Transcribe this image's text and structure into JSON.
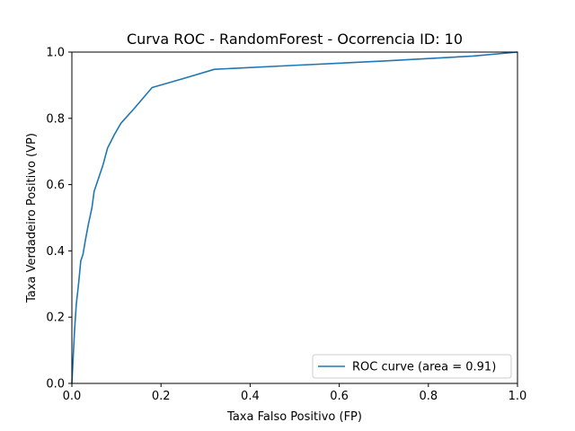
{
  "chart_data": {
    "type": "line",
    "title": "Curva ROC - RandomForest - Ocorrencia ID: 10",
    "xlabel": "Taxa Falso Positivo (FP)",
    "ylabel": "Taxa Verdadeiro Positivo (VP)",
    "xlim": [
      0.0,
      1.0
    ],
    "ylim": [
      0.0,
      1.0
    ],
    "xticks": [
      "0.0",
      "0.2",
      "0.4",
      "0.6",
      "0.8",
      "1.0"
    ],
    "yticks": [
      "0.0",
      "0.2",
      "0.4",
      "0.6",
      "0.8",
      "1.0"
    ],
    "grid": false,
    "legend_position": "lower right",
    "series": [
      {
        "name": "ROC curve (area = 0.91)",
        "color": "#1f77b4",
        "x": [
          0.0,
          0.003,
          0.006,
          0.01,
          0.015,
          0.02,
          0.025,
          0.03,
          0.037,
          0.045,
          0.05,
          0.06,
          0.07,
          0.08,
          0.095,
          0.11,
          0.14,
          0.18,
          0.25,
          0.32,
          0.5,
          0.7,
          0.9,
          1.0
        ],
        "y": [
          0.0,
          0.08,
          0.16,
          0.24,
          0.3,
          0.37,
          0.39,
          0.43,
          0.48,
          0.53,
          0.58,
          0.62,
          0.66,
          0.71,
          0.75,
          0.785,
          0.83,
          0.893,
          0.92,
          0.948,
          0.96,
          0.973,
          0.988,
          1.0
        ]
      }
    ]
  }
}
